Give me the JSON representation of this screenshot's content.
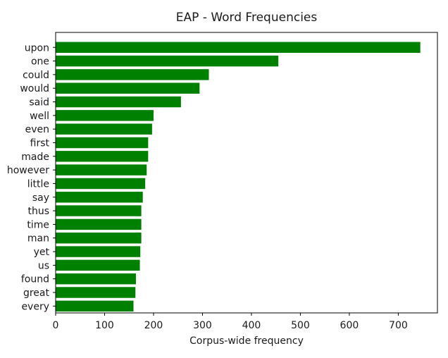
{
  "chart_data": {
    "type": "bar",
    "orientation": "horizontal",
    "title": "EAP - Word Frequencies",
    "xlabel": "Corpus-wide frequency",
    "ylabel": "",
    "xlim": [
      0,
      780
    ],
    "xticks": [
      0,
      100,
      200,
      300,
      400,
      500,
      600,
      700
    ],
    "bar_color": "#008000",
    "grid": false,
    "categories": [
      "upon",
      "one",
      "could",
      "would",
      "said",
      "well",
      "even",
      "first",
      "made",
      "however",
      "little",
      "say",
      "thus",
      "time",
      "man",
      "yet",
      "us",
      "found",
      "great",
      "every"
    ],
    "values": [
      745,
      455,
      313,
      294,
      256,
      200,
      197,
      189,
      189,
      186,
      183,
      178,
      175,
      175,
      175,
      173,
      172,
      164,
      163,
      159
    ]
  }
}
